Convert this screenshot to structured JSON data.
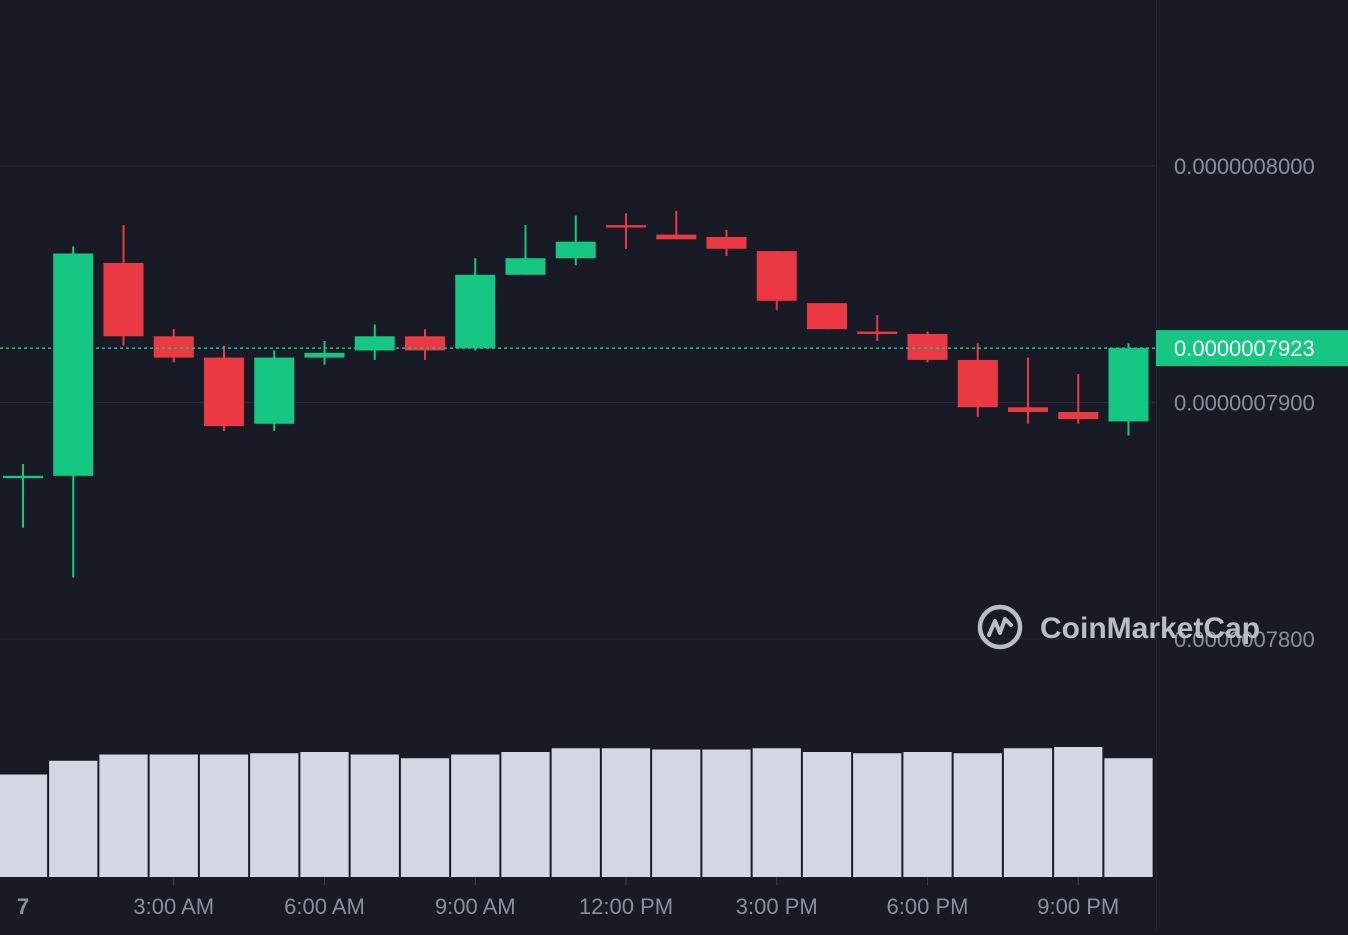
{
  "chart_data": {
    "type": "candlestick",
    "price_axis_labels": [
      "0.0000008000",
      "0.0000007900",
      "0.0000007800"
    ],
    "price_ticks": [
      8e-07,
      7.9e-07,
      7.8e-07
    ],
    "time_axis_labels": [
      "7",
      "3:00 AM",
      "6:00 AM",
      "9:00 AM",
      "12:00 PM",
      "3:00 PM",
      "6:00 PM",
      "9:00 PM"
    ],
    "current_price": 7.923e-07,
    "current_price_label": "0.0000007923",
    "colors": {
      "up": "#16c784",
      "down": "#ea3943",
      "background": "#181a25",
      "grid": "#262a36",
      "axis_text": "#8a8f9e",
      "volume": "#d2d7e3",
      "current_price_bg": "#16c784"
    },
    "watermark": "CoinMarketCap",
    "candles": [
      {
        "o": 7.868e-07,
        "h": 7.874e-07,
        "l": 7.847e-07,
        "c": 7.869e-07
      },
      {
        "o": 7.869e-07,
        "h": 7.966e-07,
        "l": 7.826e-07,
        "c": 7.963e-07
      },
      {
        "o": 7.959e-07,
        "h": 7.975e-07,
        "l": 7.924e-07,
        "c": 7.928e-07
      },
      {
        "o": 7.928e-07,
        "h": 7.931e-07,
        "l": 7.917e-07,
        "c": 7.919e-07
      },
      {
        "o": 7.919e-07,
        "h": 7.924e-07,
        "l": 7.888e-07,
        "c": 7.89e-07
      },
      {
        "o": 7.891e-07,
        "h": 7.922e-07,
        "l": 7.888e-07,
        "c": 7.919e-07
      },
      {
        "o": 7.919e-07,
        "h": 7.926e-07,
        "l": 7.916e-07,
        "c": 7.921e-07
      },
      {
        "o": 7.922e-07,
        "h": 7.933e-07,
        "l": 7.918e-07,
        "c": 7.928e-07
      },
      {
        "o": 7.928e-07,
        "h": 7.931e-07,
        "l": 7.918e-07,
        "c": 7.922e-07
      },
      {
        "o": 7.923e-07,
        "h": 7.961e-07,
        "l": 7.922e-07,
        "c": 7.954e-07
      },
      {
        "o": 7.954e-07,
        "h": 7.975e-07,
        "l": 7.954e-07,
        "c": 7.961e-07
      },
      {
        "o": 7.961e-07,
        "h": 7.979e-07,
        "l": 7.958e-07,
        "c": 7.968e-07
      },
      {
        "o": 7.975e-07,
        "h": 7.98e-07,
        "l": 7.965e-07,
        "c": 7.974e-07
      },
      {
        "o": 7.971e-07,
        "h": 7.981e-07,
        "l": 7.969e-07,
        "c": 7.969e-07
      },
      {
        "o": 7.97e-07,
        "h": 7.973e-07,
        "l": 7.962e-07,
        "c": 7.965e-07
      },
      {
        "o": 7.964e-07,
        "h": 7.964e-07,
        "l": 7.939e-07,
        "c": 7.943e-07
      },
      {
        "o": 7.942e-07,
        "h": 7.942e-07,
        "l": 7.931e-07,
        "c": 7.931e-07
      },
      {
        "o": 7.93e-07,
        "h": 7.937e-07,
        "l": 7.926e-07,
        "c": 7.929e-07
      },
      {
        "o": 7.929e-07,
        "h": 7.93e-07,
        "l": 7.917e-07,
        "c": 7.918e-07
      },
      {
        "o": 7.918e-07,
        "h": 7.925e-07,
        "l": 7.894e-07,
        "c": 7.898e-07
      },
      {
        "o": 7.898e-07,
        "h": 7.919e-07,
        "l": 7.891e-07,
        "c": 7.896e-07
      },
      {
        "o": 7.896e-07,
        "h": 7.912e-07,
        "l": 7.891e-07,
        "c": 7.893e-07
      },
      {
        "o": 7.892e-07,
        "h": 7.925e-07,
        "l": 7.886e-07,
        "c": 7.923e-07
      }
    ],
    "volumes": [
      0.82,
      0.93,
      0.98,
      0.98,
      0.98,
      0.99,
      1.0,
      0.98,
      0.95,
      0.98,
      1.0,
      1.03,
      1.03,
      1.02,
      1.02,
      1.03,
      1.0,
      0.99,
      1.0,
      0.99,
      1.03,
      1.04,
      0.95
    ]
  }
}
